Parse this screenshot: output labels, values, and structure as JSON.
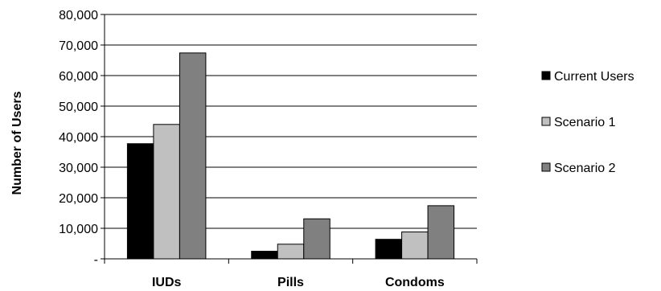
{
  "chart_data": {
    "type": "bar",
    "categories": [
      "IUDs",
      "Pills",
      "Condoms"
    ],
    "series": [
      {
        "name": "Current Users",
        "values": [
          37700,
          2500,
          6400
        ],
        "color": "#000000"
      },
      {
        "name": "Scenario 1",
        "values": [
          44000,
          4800,
          8800
        ],
        "color": "#c0c0c0"
      },
      {
        "name": "Scenario 2",
        "values": [
          67400,
          13100,
          17400
        ],
        "color": "#808080"
      }
    ],
    "title": "",
    "xlabel": "",
    "ylabel": "Number of Users",
    "ylim": [
      0,
      80000
    ],
    "yticks": [
      0,
      10000,
      20000,
      30000,
      40000,
      50000,
      60000,
      70000,
      80000
    ],
    "ytick_labels": [
      "-",
      "10,000",
      "20,000",
      "30,000",
      "40,000",
      "50,000",
      "60,000",
      "70,000",
      "80,000"
    ],
    "grid": true,
    "legend": "right"
  }
}
